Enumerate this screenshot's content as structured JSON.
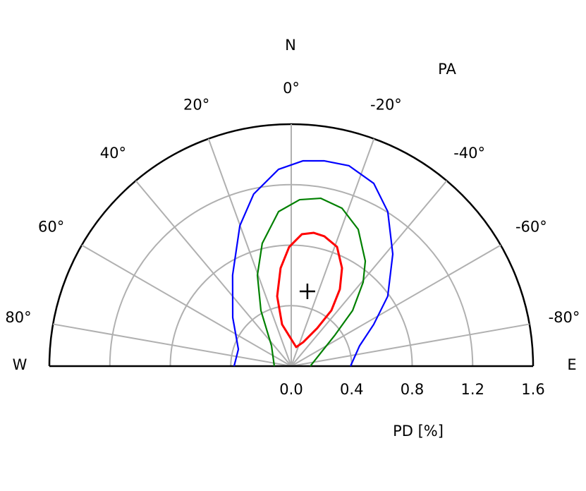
{
  "chart_data": {
    "type": "polar_half",
    "north_label": "N",
    "west_label": "W",
    "east_label": "E",
    "angle_axis_label": "PA",
    "radius_axis_label": "PD [%]",
    "xlim": [
      90,
      -90
    ],
    "xticks": [
      {
        "value": 80,
        "label": "80°"
      },
      {
        "value": 60,
        "label": "60°"
      },
      {
        "value": 40,
        "label": "40°"
      },
      {
        "value": 20,
        "label": "20°"
      },
      {
        "value": 0,
        "label": "0°"
      },
      {
        "value": -20,
        "label": "-20°"
      },
      {
        "value": -40,
        "label": "-40°"
      },
      {
        "value": -60,
        "label": "-60°"
      },
      {
        "value": -80,
        "label": "-80°"
      }
    ],
    "ylim": [
      0,
      1.6
    ],
    "yticks": [
      {
        "value": 0,
        "label": "0.0"
      },
      0.4,
      0.8,
      1.2,
      1.6
    ],
    "grid": true,
    "grid_color": "#b0b0b0",
    "series": [
      {
        "color": "#ff0000",
        "closed": true,
        "x": [
          -14.5,
          12.4,
          11.4,
          6.2,
          1.0,
          -4.6,
          -9.6,
          -14.3,
          -21.0,
          -27.4,
          -32.3,
          -35.8,
          -34.4,
          -26.6
        ],
        "values": [
          0.13,
          0.282,
          0.471,
          0.652,
          0.788,
          0.875,
          0.894,
          0.886,
          0.845,
          0.73,
          0.602,
          0.454,
          0.305,
          0.177
        ]
      },
      {
        "color": "#008000",
        "closed": false,
        "x": [
          90,
          44.0,
          28.6,
          20.4,
          13.3,
          4.7,
          -2.9,
          -10.0,
          -17.8,
          -26.1,
          -35.2,
          -40.6,
          -47.8,
          -54.6,
          -65.7,
          -90
        ],
        "values": [
          0.112,
          0.188,
          0.419,
          0.642,
          0.834,
          1.025,
          1.102,
          1.127,
          1.097,
          1.007,
          0.85,
          0.731,
          0.548,
          0.355,
          0.215,
          0.126
        ]
      },
      {
        "color": "#0000ff",
        "closed": false,
        "x": [
          90,
          72.3,
          50.3,
          32.8,
          20.1,
          12.3,
          3.7,
          -3.3,
          -9.2,
          -16.1,
          -24.3,
          -32.0,
          -42.2,
          -54.1,
          -63.2,
          -73.4,
          -90
        ],
        "values": [
          0.378,
          0.367,
          0.503,
          0.716,
          0.989,
          1.165,
          1.304,
          1.36,
          1.375,
          1.379,
          1.326,
          1.205,
          1.0,
          0.788,
          0.611,
          0.472,
          0.392
        ]
      }
    ],
    "marker": {
      "x": [
        -12.2
      ],
      "values": [
        0.506
      ]
    }
  }
}
